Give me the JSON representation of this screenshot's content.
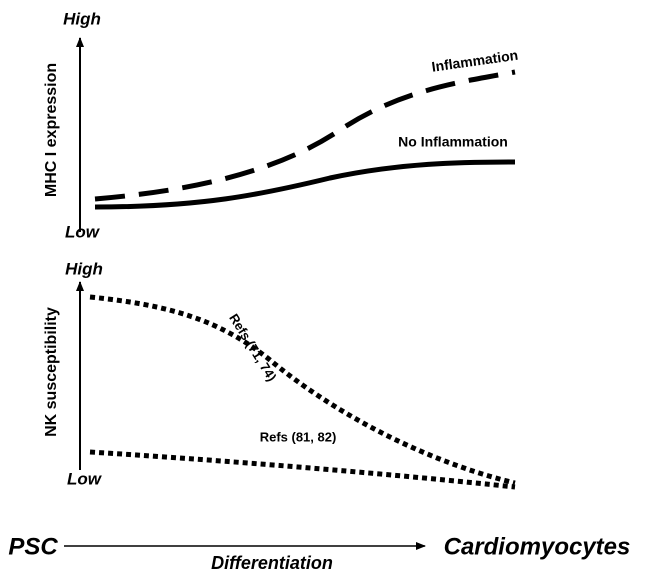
{
  "panels": [
    {
      "y_axis": {
        "label": "MHC I expression",
        "high": "High",
        "low": "Low"
      },
      "curves": [
        {
          "label": "Inflammation"
        },
        {
          "label": "No Inflammation"
        }
      ]
    },
    {
      "y_axis": {
        "label": "NK susceptibility",
        "high": "High",
        "low": "Low"
      },
      "curves": [
        {
          "label": "Refs (71, 74)"
        },
        {
          "label": "Refs (81, 82)"
        }
      ]
    }
  ],
  "x_axis": {
    "start": "PSC",
    "label": "Differentiation",
    "end": "Cardiomyocytes"
  }
}
